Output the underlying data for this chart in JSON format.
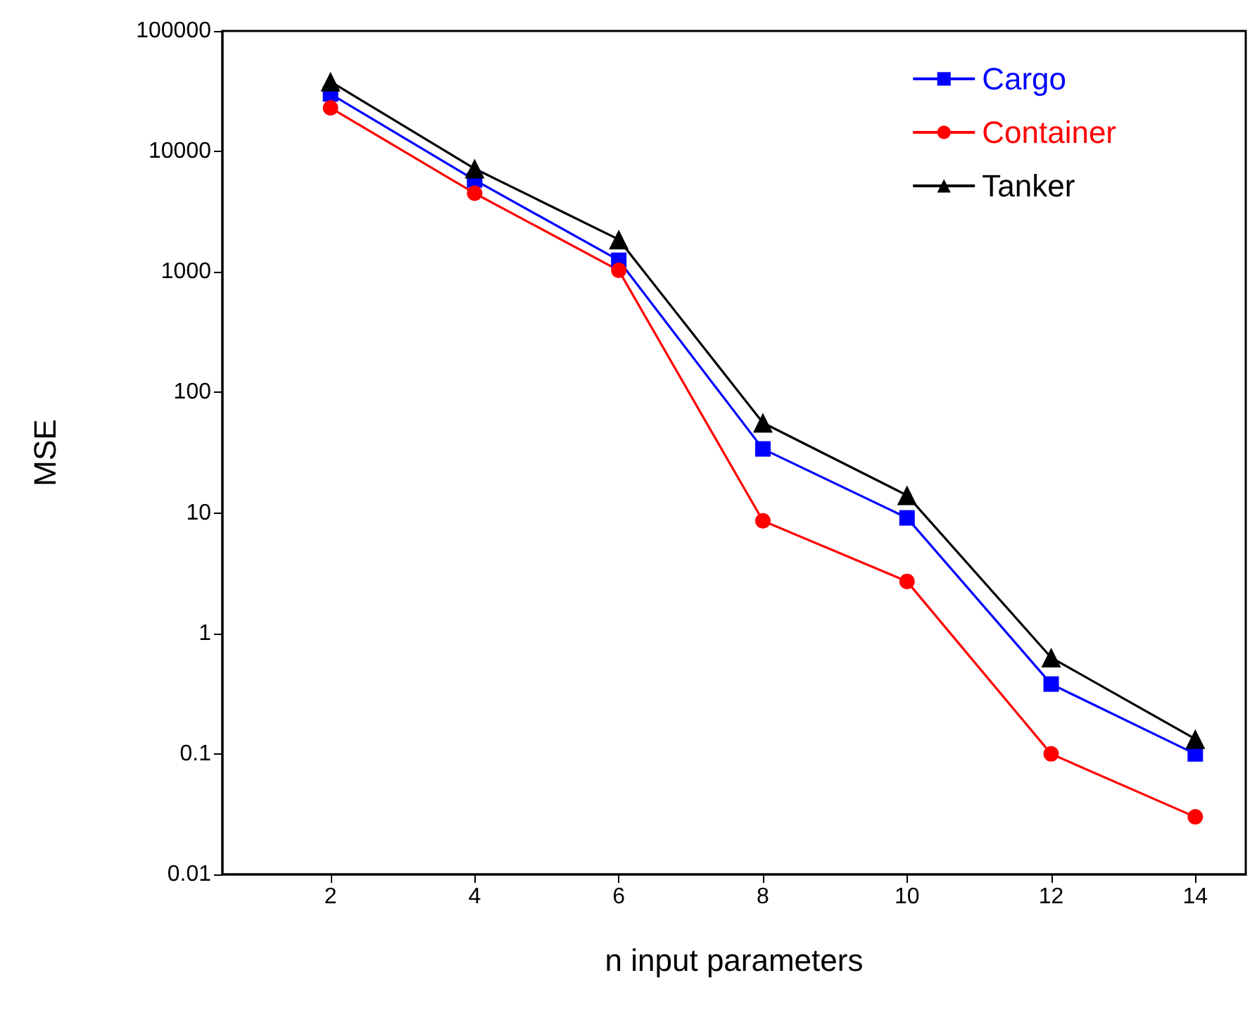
{
  "chart_data": {
    "type": "line",
    "xlabel": "n input parameters",
    "ylabel": "MSE",
    "x": [
      2,
      4,
      6,
      8,
      10,
      12,
      14
    ],
    "series": [
      {
        "name": "Cargo",
        "color": "#0000ff",
        "marker": "square",
        "values": [
          30000,
          5800,
          1250,
          34,
          9.1,
          0.38,
          0.1
        ]
      },
      {
        "name": "Container",
        "color": "#ff0000",
        "marker": "circle",
        "values": [
          23000,
          4500,
          1030,
          8.6,
          2.7,
          0.1,
          0.03
        ]
      },
      {
        "name": "Tanker",
        "color": "#000000",
        "marker": "triangle",
        "values": [
          38000,
          7200,
          1860,
          56,
          14,
          0.63,
          0.133
        ]
      }
    ],
    "xlim": [
      0.5,
      14.7
    ],
    "xticks": [
      2,
      4,
      6,
      8,
      10,
      12,
      14
    ],
    "ylim": [
      0.01,
      100000
    ],
    "yticks": [
      0.01,
      0.1,
      1,
      10,
      100,
      1000,
      10000,
      100000
    ],
    "log": "y",
    "grid": false,
    "legend": "top right",
    "line_style": "solid"
  }
}
